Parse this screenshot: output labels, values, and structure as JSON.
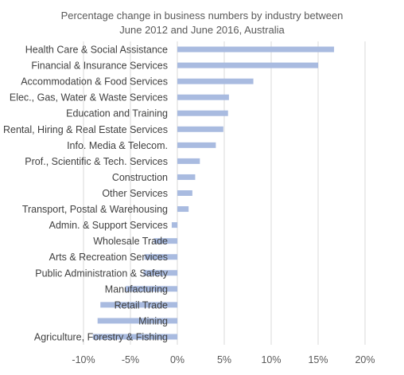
{
  "chart_data": {
    "type": "bar",
    "orientation": "horizontal",
    "title_lines": [
      "Percentage change in business numbers by industry between",
      "June 2012  and June 2016,  Australia"
    ],
    "xlabel": "",
    "ylabel": "",
    "categories": [
      "Health Care & Social Assistance",
      "Financial & Insurance Services",
      "Accommodation & Food Services",
      "Elec., Gas, Water & Waste Services",
      "Education and Training",
      "Rental, Hiring & Real Estate Services",
      "Info. Media & Telecom.",
      "Prof., Scientific & Tech. Services",
      "Construction",
      "Other Services",
      "Transport, Postal & Warehousing",
      "Admin. & Support Services",
      "Wholesale Trade",
      "Arts & Recreation Services",
      "Public Administration & Safety",
      "Manufacturing",
      "Retail Trade",
      "Mining",
      "Agriculture, Forestry & Fishing"
    ],
    "values": [
      16.7,
      15.0,
      8.1,
      5.5,
      5.4,
      4.9,
      4.1,
      2.4,
      1.9,
      1.6,
      1.2,
      -0.6,
      -2.5,
      -3.5,
      -3.6,
      -5.5,
      -8.2,
      -8.5,
      -9.0
    ],
    "xlim": [
      -10,
      20
    ],
    "xticks": [
      -10,
      -5,
      0,
      5,
      10,
      15,
      20
    ],
    "xtick_labels": [
      "-10%",
      "-5%",
      "0%",
      "5%",
      "10%",
      "15%",
      "20%"
    ],
    "grid": "vertical",
    "legend": "none",
    "bar_color": "#a9bbe0"
  }
}
